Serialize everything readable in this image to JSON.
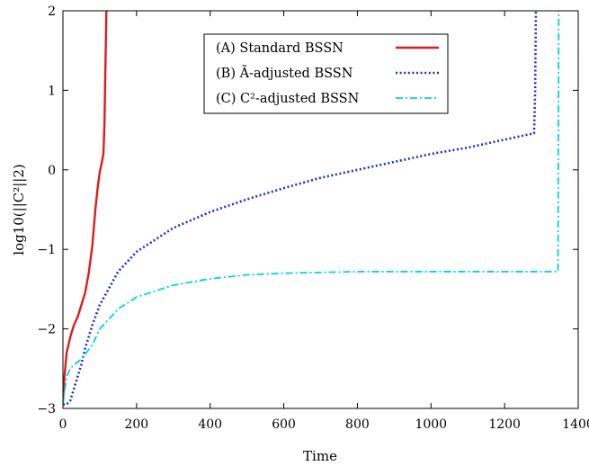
{
  "chart_data": {
    "type": "line",
    "xlabel": "Time",
    "ylabel": "log10(||C²||2)",
    "xlim": [
      0,
      1400
    ],
    "ylim": [
      -3,
      2
    ],
    "xticks": [
      0,
      200,
      400,
      600,
      800,
      1000,
      1200,
      1400
    ],
    "yticks": [
      -3,
      -2,
      -1,
      0,
      1,
      2
    ],
    "ytick_labels": [
      "−3",
      "−2",
      "−1",
      "0",
      "1",
      "2"
    ],
    "grid": false,
    "legend_position": "top-center",
    "series": [
      {
        "name": "(A) Standard BSSN",
        "color": "#e31a1c",
        "style": "solid",
        "points": [
          [
            0,
            -2.9
          ],
          [
            5,
            -2.55
          ],
          [
            10,
            -2.3
          ],
          [
            20,
            -2.1
          ],
          [
            30,
            -1.95
          ],
          [
            40,
            -1.85
          ],
          [
            50,
            -1.7
          ],
          [
            60,
            -1.55
          ],
          [
            70,
            -1.3
          ],
          [
            80,
            -0.95
          ],
          [
            88,
            -0.5
          ],
          [
            95,
            -0.2
          ],
          [
            100,
            -0.03
          ],
          [
            105,
            0.08
          ],
          [
            110,
            0.2
          ],
          [
            113,
            0.6
          ],
          [
            115,
            1.2
          ],
          [
            117,
            1.7
          ],
          [
            118,
            2.0
          ]
        ]
      },
      {
        "name": "(B) Ã-adjusted BSSN",
        "color": "#1f2fcf",
        "style": "dotted",
        "points": [
          [
            0,
            -2.95
          ],
          [
            10,
            -2.95
          ],
          [
            20,
            -2.9
          ],
          [
            30,
            -2.75
          ],
          [
            40,
            -2.6
          ],
          [
            50,
            -2.45
          ],
          [
            60,
            -2.25
          ],
          [
            80,
            -1.95
          ],
          [
            100,
            -1.7
          ],
          [
            150,
            -1.28
          ],
          [
            200,
            -1.03
          ],
          [
            300,
            -0.73
          ],
          [
            400,
            -0.53
          ],
          [
            500,
            -0.37
          ],
          [
            600,
            -0.23
          ],
          [
            700,
            -0.1
          ],
          [
            800,
            0.0
          ],
          [
            900,
            0.1
          ],
          [
            1000,
            0.2
          ],
          [
            1100,
            0.28
          ],
          [
            1200,
            0.38
          ],
          [
            1280,
            0.46
          ],
          [
            1283,
            1.0
          ],
          [
            1285,
            2.0
          ]
        ]
      },
      {
        "name": "(C) C²-adjusted BSSN",
        "color": "#00d2e6",
        "style": "dashdot",
        "points": [
          [
            0,
            -2.95
          ],
          [
            10,
            -2.6
          ],
          [
            20,
            -2.5
          ],
          [
            30,
            -2.45
          ],
          [
            50,
            -2.38
          ],
          [
            80,
            -2.2
          ],
          [
            100,
            -2.0
          ],
          [
            150,
            -1.75
          ],
          [
            200,
            -1.6
          ],
          [
            300,
            -1.45
          ],
          [
            400,
            -1.37
          ],
          [
            500,
            -1.32
          ],
          [
            600,
            -1.3
          ],
          [
            700,
            -1.29
          ],
          [
            800,
            -1.28
          ],
          [
            1000,
            -1.28
          ],
          [
            1200,
            -1.28
          ],
          [
            1345,
            -1.28
          ],
          [
            1346,
            0.0
          ],
          [
            1347,
            2.0
          ]
        ]
      }
    ]
  }
}
